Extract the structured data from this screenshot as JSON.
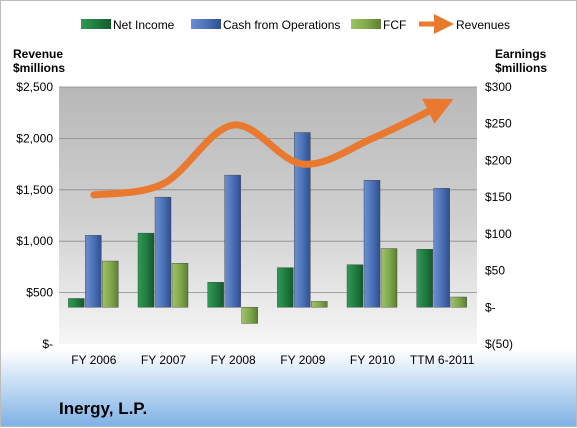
{
  "company": "Inergy, L.P.",
  "chart_data": {
    "type": "bar",
    "categories": [
      "FY 2006",
      "FY 2007",
      "FY 2008",
      "FY 2009",
      "FY 2010",
      "TTM 6-2011"
    ],
    "series": [
      {
        "name": "Net Income",
        "axis": "right",
        "kind": "bar",
        "color": "#1f7a3f",
        "values": [
          12,
          101,
          34,
          54,
          58,
          79
        ]
      },
      {
        "name": "Cash from Operations",
        "axis": "right",
        "kind": "bar",
        "color": "#4a6fb5",
        "values": [
          98,
          150,
          180,
          238,
          173,
          162
        ]
      },
      {
        "name": "FCF",
        "axis": "right",
        "kind": "bar",
        "color": "#7fa64a",
        "values": [
          63,
          60,
          -22,
          8,
          80,
          14
        ]
      },
      {
        "name": "Revenues",
        "axis": "left",
        "kind": "line",
        "color": "#e8792f",
        "values": [
          1450,
          1560,
          2130,
          1750,
          2000,
          2330
        ]
      }
    ],
    "left_axis": {
      "label": "Revenue\n$millions",
      "min": 0,
      "max": 2500,
      "ticks": [
        0,
        500,
        1000,
        1500,
        2000,
        2500
      ],
      "tick_labels": [
        "$-",
        "$500",
        "$1,000",
        "$1,500",
        "$2,000",
        "$2,500"
      ]
    },
    "right_axis": {
      "label": "Earnings\n$millions",
      "min": -50,
      "max": 300,
      "ticks": [
        -50,
        0,
        50,
        100,
        150,
        200,
        250,
        300
      ],
      "tick_labels": [
        "$(50)",
        "$-",
        "$50",
        "$100",
        "$150",
        "$200",
        "$250",
        "$300"
      ]
    },
    "legend": {
      "position": "top",
      "items": [
        "Net Income",
        "Cash from Operations",
        "FCF",
        "Revenues"
      ]
    },
    "grid": true,
    "plot_background": "gradient gray"
  }
}
